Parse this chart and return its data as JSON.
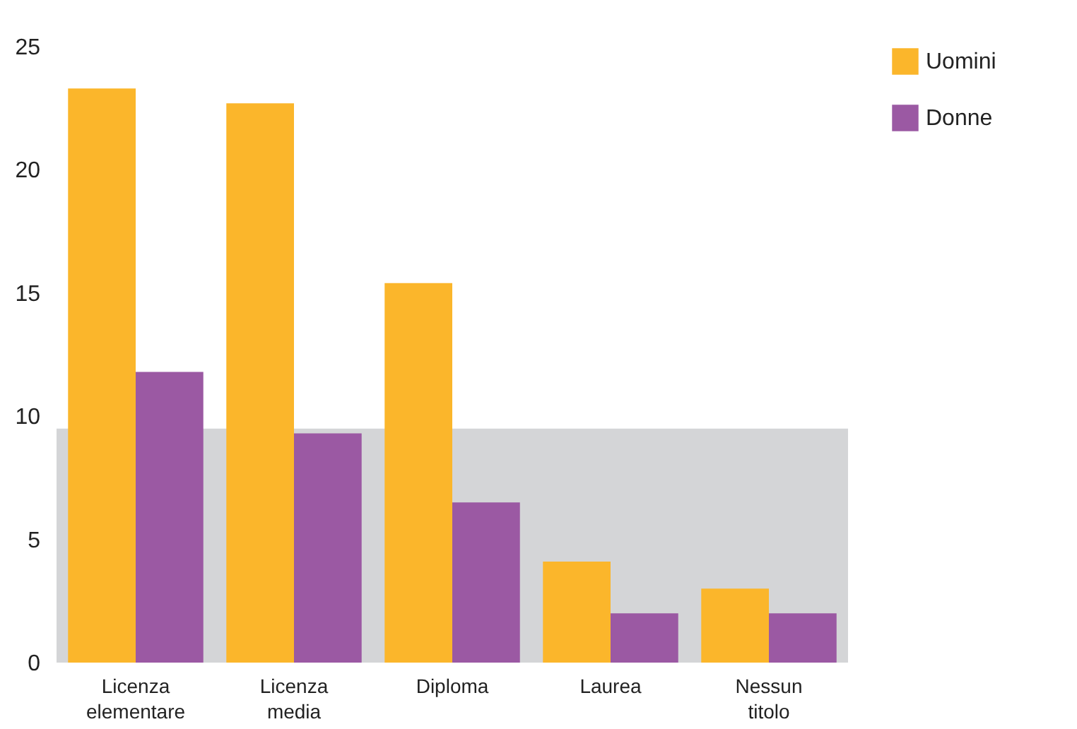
{
  "chart_data": {
    "type": "bar",
    "categories": [
      "Licenza elementare",
      "Licenza media",
      "Diploma",
      "Laurea",
      "Nessun titolo"
    ],
    "series": [
      {
        "name": "Uomini",
        "color": "#fbb62b",
        "values": [
          23.3,
          22.7,
          15.4,
          4.1,
          3.0
        ]
      },
      {
        "name": "Donne",
        "color": "#9b59a3",
        "values": [
          11.8,
          9.3,
          6.5,
          2.0,
          2.0
        ]
      }
    ],
    "ylim": [
      0,
      25
    ],
    "yticks": [
      0,
      5,
      10,
      15,
      20,
      25
    ],
    "grid": false,
    "legend": "right",
    "bands": [
      {
        "axis": "y",
        "from": 0,
        "to": 9.5,
        "color": "#d4d5d7"
      }
    ]
  }
}
